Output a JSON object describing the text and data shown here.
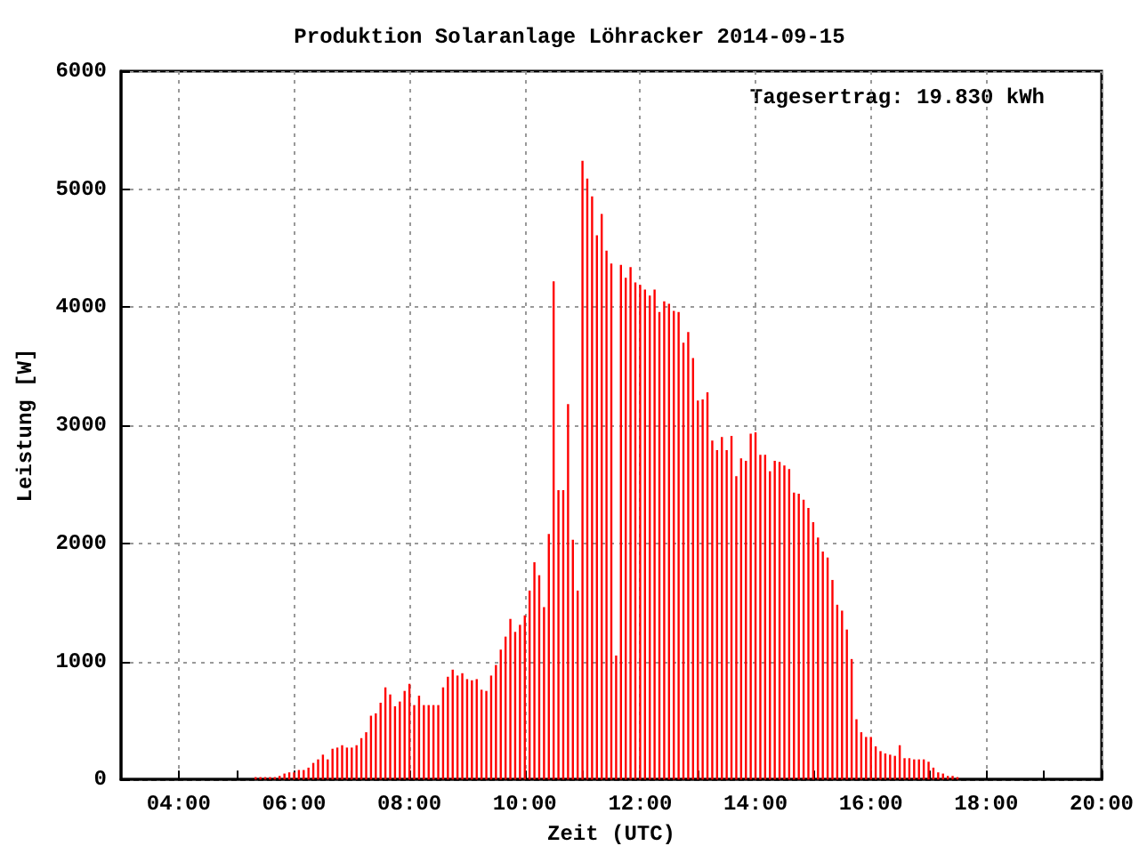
{
  "chart_data": {
    "type": "bar",
    "title": "Produktion Solaranlage Löhracker 2014-09-15",
    "xlabel": "Zeit (UTC)",
    "ylabel": "Leistung [W]",
    "annotations": [
      "Tagesertrag: 19.830 kWh"
    ],
    "x": [
      "2014-09-15T05:20",
      "2014-09-15T05:25",
      "2014-09-15T05:30",
      "2014-09-15T05:35",
      "2014-09-15T05:40",
      "2014-09-15T05:45",
      "2014-09-15T05:50",
      "2014-09-15T05:55",
      "2014-09-15T06:00",
      "2014-09-15T06:05",
      "2014-09-15T06:10",
      "2014-09-15T06:15",
      "2014-09-15T06:20",
      "2014-09-15T06:25",
      "2014-09-15T06:30",
      "2014-09-15T06:35",
      "2014-09-15T06:40",
      "2014-09-15T06:45",
      "2014-09-15T06:50",
      "2014-09-15T06:55",
      "2014-09-15T07:00",
      "2014-09-15T07:05",
      "2014-09-15T07:10",
      "2014-09-15T07:15",
      "2014-09-15T07:20",
      "2014-09-15T07:25",
      "2014-09-15T07:30",
      "2014-09-15T07:35",
      "2014-09-15T07:40",
      "2014-09-15T07:45",
      "2014-09-15T07:50",
      "2014-09-15T07:55",
      "2014-09-15T08:00",
      "2014-09-15T08:05",
      "2014-09-15T08:10",
      "2014-09-15T08:15",
      "2014-09-15T08:20",
      "2014-09-15T08:25",
      "2014-09-15T08:30",
      "2014-09-15T08:35",
      "2014-09-15T08:40",
      "2014-09-15T08:45",
      "2014-09-15T08:50",
      "2014-09-15T08:55",
      "2014-09-15T09:00",
      "2014-09-15T09:05",
      "2014-09-15T09:10",
      "2014-09-15T09:15",
      "2014-09-15T09:20",
      "2014-09-15T09:25",
      "2014-09-15T09:30",
      "2014-09-15T09:35",
      "2014-09-15T09:40",
      "2014-09-15T09:45",
      "2014-09-15T09:50",
      "2014-09-15T09:55",
      "2014-09-15T10:00",
      "2014-09-15T10:05",
      "2014-09-15T10:10",
      "2014-09-15T10:15",
      "2014-09-15T10:20",
      "2014-09-15T10:25",
      "2014-09-15T10:30",
      "2014-09-15T10:35",
      "2014-09-15T10:40",
      "2014-09-15T10:45",
      "2014-09-15T10:50",
      "2014-09-15T10:55",
      "2014-09-15T11:00",
      "2014-09-15T11:05",
      "2014-09-15T11:10",
      "2014-09-15T11:15",
      "2014-09-15T11:20",
      "2014-09-15T11:25",
      "2014-09-15T11:30",
      "2014-09-15T11:35",
      "2014-09-15T11:40",
      "2014-09-15T11:45",
      "2014-09-15T11:50",
      "2014-09-15T11:55",
      "2014-09-15T12:00",
      "2014-09-15T12:05",
      "2014-09-15T12:10",
      "2014-09-15T12:15",
      "2014-09-15T12:20",
      "2014-09-15T12:25",
      "2014-09-15T12:30",
      "2014-09-15T12:35",
      "2014-09-15T12:40",
      "2014-09-15T12:45",
      "2014-09-15T12:50",
      "2014-09-15T12:55",
      "2014-09-15T13:00",
      "2014-09-15T13:05",
      "2014-09-15T13:10",
      "2014-09-15T13:15",
      "2014-09-15T13:20",
      "2014-09-15T13:25",
      "2014-09-15T13:30",
      "2014-09-15T13:35",
      "2014-09-15T13:40",
      "2014-09-15T13:45",
      "2014-09-15T13:50",
      "2014-09-15T13:55",
      "2014-09-15T14:00",
      "2014-09-15T14:05",
      "2014-09-15T14:10",
      "2014-09-15T14:15",
      "2014-09-15T14:20",
      "2014-09-15T14:25",
      "2014-09-15T14:30",
      "2014-09-15T14:35",
      "2014-09-15T14:40",
      "2014-09-15T14:45",
      "2014-09-15T14:50",
      "2014-09-15T14:55",
      "2014-09-15T15:00",
      "2014-09-15T15:05",
      "2014-09-15T15:10",
      "2014-09-15T15:15",
      "2014-09-15T15:20",
      "2014-09-15T15:25",
      "2014-09-15T15:30",
      "2014-09-15T15:35",
      "2014-09-15T15:40",
      "2014-09-15T15:45",
      "2014-09-15T15:50",
      "2014-09-15T15:55",
      "2014-09-15T16:00",
      "2014-09-15T16:05",
      "2014-09-15T16:10",
      "2014-09-15T16:15",
      "2014-09-15T16:20",
      "2014-09-15T16:25",
      "2014-09-15T16:30",
      "2014-09-15T16:35",
      "2014-09-15T16:40",
      "2014-09-15T16:45",
      "2014-09-15T16:50",
      "2014-09-15T16:55",
      "2014-09-15T17:00",
      "2014-09-15T17:05",
      "2014-09-15T17:10",
      "2014-09-15T17:15",
      "2014-09-15T17:20",
      "2014-09-15T17:25",
      "2014-09-15T17:30"
    ],
    "values": [
      20,
      20,
      20,
      20,
      20,
      30,
      50,
      60,
      60,
      80,
      80,
      100,
      140,
      170,
      210,
      170,
      260,
      270,
      290,
      270,
      270,
      290,
      350,
      400,
      540,
      560,
      650,
      780,
      720,
      620,
      660,
      750,
      810,
      630,
      710,
      630,
      630,
      630,
      630,
      780,
      870,
      930,
      880,
      900,
      850,
      840,
      850,
      760,
      750,
      880,
      970,
      1100,
      1210,
      1360,
      1250,
      1310,
      1390,
      1600,
      1840,
      1730,
      1460,
      2080,
      4220,
      2450,
      2450,
      3180,
      2030,
      1600,
      5240,
      5090,
      4940,
      4610,
      4790,
      4480,
      4370,
      1050,
      4360,
      4250,
      4340,
      4210,
      4190,
      4150,
      4100,
      4150,
      3960,
      4050,
      4030,
      3970,
      3960,
      3700,
      3790,
      3570,
      3210,
      3220,
      3280,
      2870,
      2790,
      2900,
      2790,
      2910,
      2570,
      2720,
      2700,
      2930,
      2940,
      2750,
      2750,
      2610,
      2700,
      2690,
      2660,
      2630,
      2430,
      2420,
      2370,
      2300,
      2180,
      2050,
      1930,
      1880,
      1690,
      1480,
      1430,
      1270,
      1020,
      510,
      400,
      360,
      360,
      280,
      240,
      220,
      210,
      200,
      290,
      180,
      180,
      170,
      170,
      170,
      150,
      100,
      60,
      50,
      30,
      30,
      20
    ],
    "color": "#ff0000",
    "xlim": [
      "2014-09-15T03:00",
      "2014-09-15T20:00"
    ],
    "xticks": [
      {
        "value": "2014-09-15T04:00",
        "label": "04:00"
      },
      {
        "value": "2014-09-15T05:00",
        "label": null
      },
      {
        "value": "2014-09-15T06:00",
        "label": "06:00"
      },
      {
        "value": "2014-09-15T07:00",
        "label": null
      },
      {
        "value": "2014-09-15T08:00",
        "label": "08:00"
      },
      {
        "value": "2014-09-15T09:00",
        "label": null
      },
      {
        "value": "2014-09-15T10:00",
        "label": "10:00"
      },
      {
        "value": "2014-09-15T11:00",
        "label": null
      },
      {
        "value": "2014-09-15T12:00",
        "label": "12:00"
      },
      {
        "value": "2014-09-15T13:00",
        "label": null
      },
      {
        "value": "2014-09-15T14:00",
        "label": "14:00"
      },
      {
        "value": "2014-09-15T15:00",
        "label": null
      },
      {
        "value": "2014-09-15T16:00",
        "label": "16:00"
      },
      {
        "value": "2014-09-15T17:00",
        "label": null
      },
      {
        "value": "2014-09-15T18:00",
        "label": "18:00"
      },
      {
        "value": "2014-09-15T19:00",
        "label": null
      },
      {
        "value": "2014-09-15T20:00",
        "label": "20:00"
      }
    ],
    "ylim": [
      0,
      6000
    ],
    "yticks": [
      0,
      1000,
      2000,
      3000,
      4000,
      5000,
      6000
    ],
    "grid": true
  }
}
